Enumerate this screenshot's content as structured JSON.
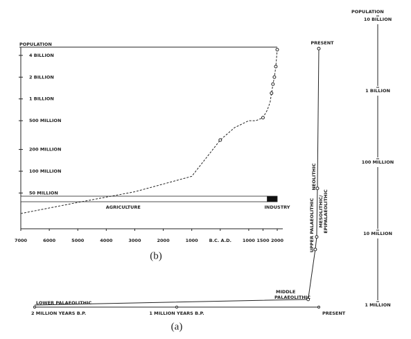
{
  "chart_data": [
    {
      "type": "line",
      "caption": "(b)",
      "y_label": "POPULATION",
      "log_y": true,
      "x": [
        -7000,
        -5000,
        -3000,
        -1000,
        0,
        500,
        1000,
        1250,
        1500,
        1650,
        1750,
        1800,
        1850,
        1900,
        1950,
        2000
      ],
      "series": [
        {
          "color": "#222222",
          "values": [
            26000000,
            37000000,
            52000000,
            85000000,
            270000000,
            400000000,
            500000000,
            500000000,
            550000000,
            700000000,
            900000000,
            1200000000,
            1600000000,
            2000000000,
            2800000000,
            4800000000
          ]
        }
      ],
      "xlim": [
        -7000,
        2000
      ],
      "xticks": [
        {
          "value": -7000,
          "label": "7000"
        },
        {
          "value": -6000,
          "label": "6000"
        },
        {
          "value": -5000,
          "label": "5000"
        },
        {
          "value": -4000,
          "label": "4000"
        },
        {
          "value": -3000,
          "label": "3000"
        },
        {
          "value": -2000,
          "label": "2000"
        },
        {
          "value": -1000,
          "label": "1000"
        },
        {
          "value": 0,
          "label": "B.C. A.D."
        },
        1000,
        1500,
        2000
      ],
      "ylim": [
        16000000,
        5200000000
      ],
      "yticks": [
        {
          "value": 50000000,
          "label": "50 MILLION"
        },
        {
          "value": 100000000,
          "label": "100 MILLION"
        },
        {
          "value": 200000000,
          "label": "200 MILLION"
        },
        {
          "value": 500000000,
          "label": "500 MILLION"
        },
        {
          "value": 1000000000,
          "label": "1 BILLION"
        },
        {
          "value": 2000000000,
          "label": "2 BILLION"
        },
        {
          "value": 4000000000,
          "label": "4 BILLION"
        }
      ],
      "bands": [
        {
          "label": "AGRICULTURE",
          "start": -7000,
          "end": 1650,
          "color": "#ffffff"
        },
        {
          "label": "INDUSTRY",
          "start": 1650,
          "end": 2000,
          "color": "#111111"
        }
      ]
    },
    {
      "type": "line",
      "caption": "(a)",
      "y_label": "POPULATION",
      "log_y": true,
      "x": [
        2000000,
        75000,
        25000,
        15000,
        10000,
        0
      ],
      "series": [
        {
          "color": "#222222",
          "values": [
            1000000,
            1200000,
            6000000,
            9000000,
            43000000,
            3900000000
          ]
        }
      ],
      "xlim": [
        2000000,
        0
      ],
      "xticks": [
        {
          "value": 2000000,
          "label": "2 MILLION YEARS B.P."
        },
        {
          "value": 1000000,
          "label": "1 MILLION YEARS B.P."
        },
        {
          "value": 0,
          "label": "PRESENT"
        }
      ],
      "ylim": [
        1000000,
        10000000000
      ],
      "yticks": [
        {
          "value": 1000000,
          "label": "1 MILLION"
        },
        {
          "value": 10000000,
          "label": "10 MILLION"
        },
        {
          "value": 100000000,
          "label": "100 MILLION"
        },
        {
          "value": 1000000000,
          "label": "1 BILLION"
        },
        {
          "value": 10000000000,
          "label": "10 BILLION"
        }
      ],
      "annotations": [
        "LOWER PALAEOLITHIC",
        "MIDDLE",
        "PALAEOLITHIC",
        "UPPER PALAEOLITHIC",
        "MESOLITHIC/",
        "EPIPALAEOLITHIC",
        "NEOLITHIC",
        "PRESENT"
      ]
    }
  ]
}
